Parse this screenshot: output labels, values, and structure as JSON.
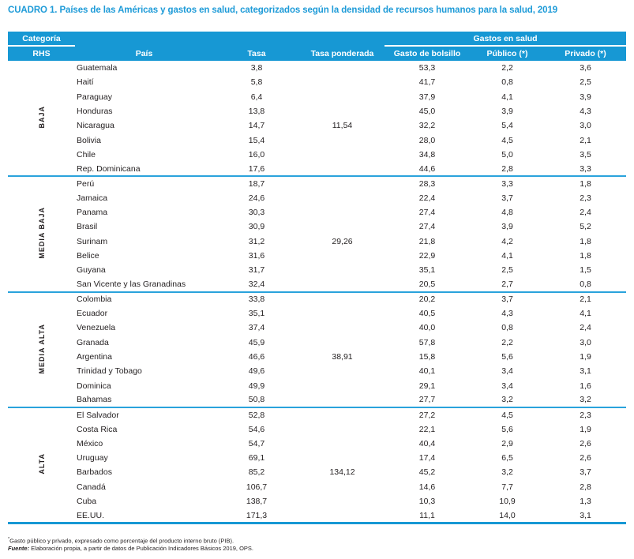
{
  "title": "CUADRO 1. Países de las Américas y gastos en salud, categorizados según la densidad de recursos humanos para la salud, 2019",
  "colors": {
    "header_blue": "#1798d4",
    "title_blue": "#1e9bd8",
    "divider_blue": "#2aa3dc",
    "text_dark": "#231f20"
  },
  "table": {
    "header": {
      "categoria": "Categoría",
      "rhs": "RHS",
      "pais": "País",
      "tasa": "Tasa",
      "tasa_ponderada": "Tasa ponderada",
      "gastos_group": "Gastos en salud",
      "gasto_bolsillo": "Gasto de bolsillo",
      "publico": "Público (*)",
      "privado": "Privado (*)"
    },
    "groups": [
      {
        "category": "BAJA",
        "rows": [
          {
            "pais": "Guatemala",
            "tasa": "3,8",
            "tasa_ponderada": "",
            "gasto_bolsillo": "53,3",
            "publico": "2,2",
            "privado": "3,6"
          },
          {
            "pais": "Haití",
            "tasa": "5,8",
            "tasa_ponderada": "",
            "gasto_bolsillo": "41,7",
            "publico": "0,8",
            "privado": "2,5"
          },
          {
            "pais": "Paraguay",
            "tasa": "6,4",
            "tasa_ponderada": "",
            "gasto_bolsillo": "37,9",
            "publico": "4,1",
            "privado": "3,9"
          },
          {
            "pais": "Honduras",
            "tasa": "13,8",
            "tasa_ponderada": "",
            "gasto_bolsillo": "45,0",
            "publico": "3,9",
            "privado": "4,3"
          },
          {
            "pais": "Nicaragua",
            "tasa": "14,7",
            "tasa_ponderada": "11,54",
            "gasto_bolsillo": "32,2",
            "publico": "5,4",
            "privado": "3,0"
          },
          {
            "pais": "Bolivia",
            "tasa": "15,4",
            "tasa_ponderada": "",
            "gasto_bolsillo": "28,0",
            "publico": "4,5",
            "privado": "2,1"
          },
          {
            "pais": "Chile",
            "tasa": "16,0",
            "tasa_ponderada": "",
            "gasto_bolsillo": "34,8",
            "publico": "5,0",
            "privado": "3,5"
          },
          {
            "pais": "Rep. Dominicana",
            "tasa": "17,6",
            "tasa_ponderada": "",
            "gasto_bolsillo": "44,6",
            "publico": "2,8",
            "privado": "3,3"
          }
        ]
      },
      {
        "category": "MEDIA BAJA",
        "rows": [
          {
            "pais": "Perú",
            "tasa": "18,7",
            "tasa_ponderada": "",
            "gasto_bolsillo": "28,3",
            "publico": "3,3",
            "privado": "1,8"
          },
          {
            "pais": "Jamaica",
            "tasa": "24,6",
            "tasa_ponderada": "",
            "gasto_bolsillo": "22,4",
            "publico": "3,7",
            "privado": "2,3"
          },
          {
            "pais": "Panama",
            "tasa": "30,3",
            "tasa_ponderada": "",
            "gasto_bolsillo": "27,4",
            "publico": "4,8",
            "privado": "2,4"
          },
          {
            "pais": "Brasil",
            "tasa": "30,9",
            "tasa_ponderada": "",
            "gasto_bolsillo": "27,4",
            "publico": "3,9",
            "privado": "5,2"
          },
          {
            "pais": "Surinam",
            "tasa": "31,2",
            "tasa_ponderada": "29,26",
            "gasto_bolsillo": "21,8",
            "publico": "4,2",
            "privado": "1,8"
          },
          {
            "pais": "Belice",
            "tasa": "31,6",
            "tasa_ponderada": "",
            "gasto_bolsillo": "22,9",
            "publico": "4,1",
            "privado": "1,8"
          },
          {
            "pais": "Guyana",
            "tasa": "31,7",
            "tasa_ponderada": "",
            "gasto_bolsillo": "35,1",
            "publico": "2,5",
            "privado": "1,5"
          },
          {
            "pais": "San Vicente y las Granadinas",
            "tasa": "32,4",
            "tasa_ponderada": "",
            "gasto_bolsillo": "20,5",
            "publico": "2,7",
            "privado": "0,8"
          }
        ]
      },
      {
        "category": "MEDIA ALTA",
        "rows": [
          {
            "pais": "Colombia",
            "tasa": "33,8",
            "tasa_ponderada": "",
            "gasto_bolsillo": "20,2",
            "publico": "3,7",
            "privado": "2,1"
          },
          {
            "pais": "Ecuador",
            "tasa": "35,1",
            "tasa_ponderada": "",
            "gasto_bolsillo": "40,5",
            "publico": "4,3",
            "privado": "4,1"
          },
          {
            "pais": "Venezuela",
            "tasa": "37,4",
            "tasa_ponderada": "",
            "gasto_bolsillo": "40,0",
            "publico": "0,8",
            "privado": "2,4"
          },
          {
            "pais": "Granada",
            "tasa": "45,9",
            "tasa_ponderada": "",
            "gasto_bolsillo": "57,8",
            "publico": "2,2",
            "privado": "3,0"
          },
          {
            "pais": "Argentina",
            "tasa": "46,6",
            "tasa_ponderada": "38,91",
            "gasto_bolsillo": "15,8",
            "publico": "5,6",
            "privado": "1,9"
          },
          {
            "pais": "Trinidad y Tobago",
            "tasa": "49,6",
            "tasa_ponderada": "",
            "gasto_bolsillo": "40,1",
            "publico": "3,4",
            "privado": "3,1"
          },
          {
            "pais": "Dominica",
            "tasa": "49,9",
            "tasa_ponderada": "",
            "gasto_bolsillo": "29,1",
            "publico": "3,4",
            "privado": "1,6"
          },
          {
            "pais": "Bahamas",
            "tasa": "50,8",
            "tasa_ponderada": "",
            "gasto_bolsillo": "27,7",
            "publico": "3,2",
            "privado": "3,2"
          }
        ]
      },
      {
        "category": "ALTA",
        "rows": [
          {
            "pais": "El Salvador",
            "tasa": "52,8",
            "tasa_ponderada": "",
            "gasto_bolsillo": "27,2",
            "publico": "4,5",
            "privado": "2,3"
          },
          {
            "pais": "Costa Rica",
            "tasa": "54,6",
            "tasa_ponderada": "",
            "gasto_bolsillo": "22,1",
            "publico": "5,6",
            "privado": "1,9"
          },
          {
            "pais": "México",
            "tasa": "54,7",
            "tasa_ponderada": "",
            "gasto_bolsillo": "40,4",
            "publico": "2,9",
            "privado": "2,6"
          },
          {
            "pais": "Uruguay",
            "tasa": "69,1",
            "tasa_ponderada": "",
            "gasto_bolsillo": "17,4",
            "publico": "6,5",
            "privado": "2,6"
          },
          {
            "pais": "Barbados",
            "tasa": "85,2",
            "tasa_ponderada": "134,12",
            "gasto_bolsillo": "45,2",
            "publico": "3,2",
            "privado": "3,7"
          },
          {
            "pais": "Canadá",
            "tasa": "106,7",
            "tasa_ponderada": "",
            "gasto_bolsillo": "14,6",
            "publico": "7,7",
            "privado": "2,8"
          },
          {
            "pais": "Cuba",
            "tasa": "138,7",
            "tasa_ponderada": "",
            "gasto_bolsillo": "10,3",
            "publico": "10,9",
            "privado": "1,3"
          },
          {
            "pais": "EE.UU.",
            "tasa": "171,3",
            "tasa_ponderada": "",
            "gasto_bolsillo": "11,1",
            "publico": "14,0",
            "privado": "3,1"
          }
        ]
      }
    ]
  },
  "footnotes": {
    "note1_marker": "*",
    "note1_text": "Gasto público y privado, expresado como porcentaje del producto interno bruto (PIB).",
    "source_label": "Fuente:",
    "source_text": " Elaboración propia, a partir de datos de Publicación Indicadores Básicos 2019, OPS."
  }
}
